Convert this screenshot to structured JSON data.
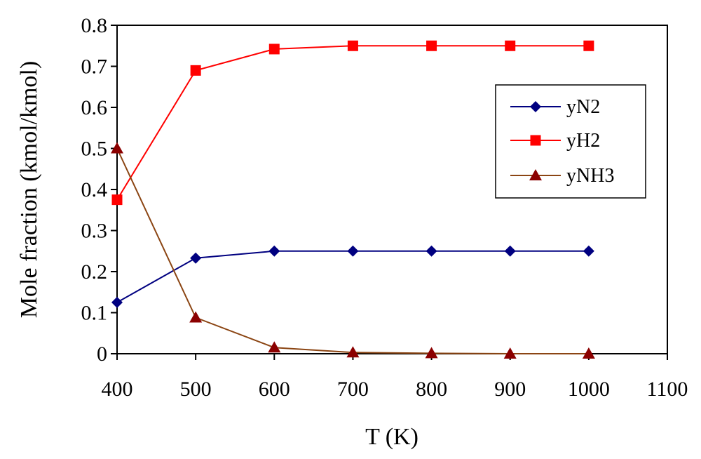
{
  "chart_data": {
    "type": "line",
    "title": "",
    "xlabel": "T (K)",
    "ylabel": "Mole fraction  (kmol/kmol)",
    "xlim": [
      400,
      1100
    ],
    "ylim": [
      0,
      0.8
    ],
    "x_ticks": [
      "400",
      "500",
      "600",
      "700",
      "800",
      "900",
      "1000",
      "1100"
    ],
    "y_ticks": [
      "0",
      "0.1",
      "0.2",
      "0.3",
      "0.4",
      "0.5",
      "0.6",
      "0.7",
      "0.8"
    ],
    "grid": false,
    "legend_position": "right",
    "x": [
      400,
      500,
      600,
      700,
      800,
      900,
      1000
    ],
    "series": [
      {
        "name": "yN2",
        "color": "#000080",
        "marker": "diamond",
        "values": [
          0.125,
          0.233,
          0.25,
          0.25,
          0.25,
          0.25,
          0.25
        ]
      },
      {
        "name": "yH2",
        "color": "#ff0000",
        "marker": "square",
        "values": [
          0.375,
          0.69,
          0.742,
          0.75,
          0.75,
          0.75,
          0.75
        ]
      },
      {
        "name": "yNH3",
        "color": "#8b0000",
        "line_color": "#8b4513",
        "marker": "triangle",
        "values": [
          0.5,
          0.088,
          0.015,
          0.003,
          0.001,
          0.0,
          0.0
        ]
      }
    ]
  }
}
